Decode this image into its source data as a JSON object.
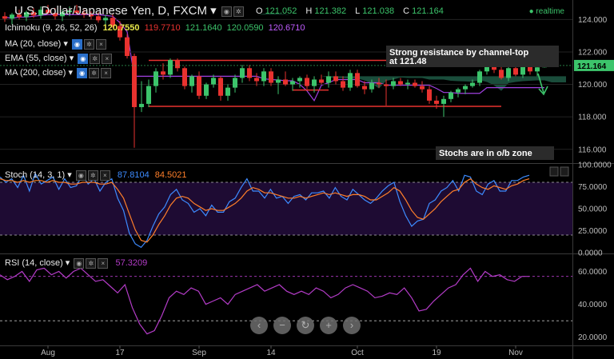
{
  "header": {
    "title": "U.S. Dollar/Japanese Yen, D, FXCM",
    "open_label": "O",
    "open": "121.052",
    "high_label": "H",
    "high": "121.382",
    "low_label": "L",
    "low": "121.038",
    "close_label": "C",
    "close": "121.164",
    "realtime": "realtime"
  },
  "indicators": {
    "ichimoku": "Ichimoku (9, 26, 52, 26)",
    "ichimoku_values": [
      "120.7550",
      "119.7710",
      "121.1640",
      "120.0590",
      "120.6710"
    ],
    "ma20": "MA (20, close)",
    "ema55": "EMA (55, close)",
    "ma200": "MA (200, close)",
    "stoch": "Stoch (14, 3, 1)",
    "stoch_k": "87.8104",
    "stoch_d": "84.5021",
    "rsi": "RSI (14, close)",
    "rsi_value": "57.3209"
  },
  "annotations": {
    "resistance_line1": "Strong resistance by channel-top",
    "resistance_line2": "at 121.48",
    "stochs": "Stochs are in o/b zone"
  },
  "price_tag": "121.164",
  "colors": {
    "up": "#3cc46b",
    "down": "#e8322f",
    "stoch_k": "#3d8bff",
    "stoch_d": "#ff7f2a",
    "rsi": "#b43cc8",
    "ichimoku_kijun": "#a040e0",
    "annotation_line": "#e8322f"
  },
  "chart_data": [
    {
      "type": "candlestick",
      "title": "U.S. Dollar/Japanese Yen, D, FXCM",
      "x_tick_labels": [
        "Aug",
        "17",
        "Sep",
        "14",
        "Oct",
        "19",
        "Nov"
      ],
      "y_tick_labels": [
        "124.000",
        "122.000",
        "120.000",
        "118.000",
        "116.000"
      ],
      "ylim": [
        115.2,
        125.2
      ],
      "candles": [
        {
          "o": 124.2,
          "h": 124.45,
          "l": 123.85,
          "c": 124.05
        },
        {
          "o": 124.05,
          "h": 124.4,
          "l": 123.7,
          "c": 124.3
        },
        {
          "o": 124.3,
          "h": 124.6,
          "l": 124.0,
          "c": 124.15
        },
        {
          "o": 124.15,
          "h": 124.55,
          "l": 123.9,
          "c": 124.45
        },
        {
          "o": 124.45,
          "h": 124.7,
          "l": 124.1,
          "c": 124.25
        },
        {
          "o": 124.25,
          "h": 124.8,
          "l": 124.05,
          "c": 124.6
        },
        {
          "o": 124.6,
          "h": 124.9,
          "l": 124.3,
          "c": 124.4
        },
        {
          "o": 124.4,
          "h": 124.7,
          "l": 124.0,
          "c": 124.2
        },
        {
          "o": 124.2,
          "h": 124.6,
          "l": 123.9,
          "c": 124.45
        },
        {
          "o": 124.45,
          "h": 124.8,
          "l": 124.2,
          "c": 124.55
        },
        {
          "o": 124.55,
          "h": 124.9,
          "l": 124.3,
          "c": 124.4
        },
        {
          "o": 124.4,
          "h": 124.6,
          "l": 124.1,
          "c": 124.3
        },
        {
          "o": 124.3,
          "h": 124.5,
          "l": 124.0,
          "c": 124.2
        },
        {
          "o": 124.2,
          "h": 124.45,
          "l": 123.8,
          "c": 123.95
        },
        {
          "o": 123.95,
          "h": 124.3,
          "l": 123.6,
          "c": 124.1
        },
        {
          "o": 124.1,
          "h": 124.35,
          "l": 123.5,
          "c": 123.6
        },
        {
          "o": 123.6,
          "h": 123.9,
          "l": 122.7,
          "c": 122.9
        },
        {
          "o": 122.9,
          "h": 123.1,
          "l": 121.6,
          "c": 121.75
        },
        {
          "o": 121.75,
          "h": 121.9,
          "l": 116.1,
          "c": 118.6
        },
        {
          "o": 118.6,
          "h": 120.2,
          "l": 118.3,
          "c": 118.8
        },
        {
          "o": 118.8,
          "h": 120.3,
          "l": 118.6,
          "c": 119.9
        },
        {
          "o": 119.9,
          "h": 121.0,
          "l": 119.5,
          "c": 120.8
        },
        {
          "o": 120.8,
          "h": 121.3,
          "l": 120.3,
          "c": 120.6
        },
        {
          "o": 120.6,
          "h": 121.6,
          "l": 120.4,
          "c": 121.5
        },
        {
          "o": 121.5,
          "h": 121.6,
          "l": 120.8,
          "c": 121.0
        },
        {
          "o": 121.0,
          "h": 121.1,
          "l": 119.7,
          "c": 119.9
        },
        {
          "o": 119.9,
          "h": 120.6,
          "l": 119.5,
          "c": 120.5
        },
        {
          "o": 120.5,
          "h": 120.8,
          "l": 119.1,
          "c": 119.3
        },
        {
          "o": 119.3,
          "h": 120.1,
          "l": 119.1,
          "c": 120.0
        },
        {
          "o": 120.0,
          "h": 120.6,
          "l": 119.8,
          "c": 120.4
        },
        {
          "o": 120.4,
          "h": 120.5,
          "l": 119.0,
          "c": 119.3
        },
        {
          "o": 119.3,
          "h": 120.0,
          "l": 119.0,
          "c": 119.8
        },
        {
          "o": 119.8,
          "h": 120.6,
          "l": 119.5,
          "c": 120.4
        },
        {
          "o": 120.4,
          "h": 121.2,
          "l": 120.1,
          "c": 121.0
        },
        {
          "o": 121.0,
          "h": 121.2,
          "l": 120.2,
          "c": 120.4
        },
        {
          "o": 120.4,
          "h": 120.7,
          "l": 119.9,
          "c": 120.2
        },
        {
          "o": 120.2,
          "h": 121.0,
          "l": 119.9,
          "c": 120.8
        },
        {
          "o": 120.8,
          "h": 121.0,
          "l": 119.9,
          "c": 120.1
        },
        {
          "o": 120.1,
          "h": 120.5,
          "l": 119.4,
          "c": 120.3
        },
        {
          "o": 120.3,
          "h": 120.8,
          "l": 119.9,
          "c": 120.0
        },
        {
          "o": 120.0,
          "h": 120.4,
          "l": 119.6,
          "c": 120.2
        },
        {
          "o": 120.2,
          "h": 120.5,
          "l": 119.8,
          "c": 120.4
        },
        {
          "o": 120.4,
          "h": 120.6,
          "l": 119.7,
          "c": 119.9
        },
        {
          "o": 119.9,
          "h": 120.5,
          "l": 119.5,
          "c": 120.3
        },
        {
          "o": 120.3,
          "h": 120.6,
          "l": 120.0,
          "c": 120.1
        },
        {
          "o": 120.1,
          "h": 120.8,
          "l": 119.8,
          "c": 120.5
        },
        {
          "o": 120.5,
          "h": 120.8,
          "l": 120.0,
          "c": 120.2
        },
        {
          "o": 120.2,
          "h": 120.5,
          "l": 119.6,
          "c": 119.8
        },
        {
          "o": 119.8,
          "h": 120.9,
          "l": 119.6,
          "c": 120.7
        },
        {
          "o": 120.7,
          "h": 120.9,
          "l": 119.8,
          "c": 119.9
        },
        {
          "o": 119.9,
          "h": 120.2,
          "l": 119.4,
          "c": 119.7
        },
        {
          "o": 119.7,
          "h": 120.3,
          "l": 119.5,
          "c": 120.1
        },
        {
          "o": 120.1,
          "h": 120.4,
          "l": 119.8,
          "c": 120.0
        },
        {
          "o": 120.0,
          "h": 120.3,
          "l": 118.7,
          "c": 119.9
        },
        {
          "o": 119.9,
          "h": 120.4,
          "l": 119.7,
          "c": 120.2
        },
        {
          "o": 120.2,
          "h": 120.4,
          "l": 119.9,
          "c": 120.0
        },
        {
          "o": 120.0,
          "h": 120.3,
          "l": 119.7,
          "c": 120.1
        },
        {
          "o": 120.1,
          "h": 120.3,
          "l": 119.8,
          "c": 119.9
        },
        {
          "o": 119.9,
          "h": 120.2,
          "l": 119.5,
          "c": 119.7
        },
        {
          "o": 119.7,
          "h": 119.9,
          "l": 118.8,
          "c": 119.0
        },
        {
          "o": 119.0,
          "h": 119.3,
          "l": 118.5,
          "c": 118.8
        },
        {
          "o": 118.8,
          "h": 119.3,
          "l": 118.0,
          "c": 119.1
        },
        {
          "o": 119.1,
          "h": 119.6,
          "l": 118.9,
          "c": 119.5
        },
        {
          "o": 119.5,
          "h": 119.8,
          "l": 119.2,
          "c": 119.7
        },
        {
          "o": 119.7,
          "h": 120.0,
          "l": 119.4,
          "c": 119.9
        },
        {
          "o": 119.9,
          "h": 120.3,
          "l": 119.8,
          "c": 120.1
        },
        {
          "o": 120.1,
          "h": 120.9,
          "l": 119.9,
          "c": 120.8
        },
        {
          "o": 120.8,
          "h": 121.6,
          "l": 120.6,
          "c": 121.4
        },
        {
          "o": 121.4,
          "h": 121.5,
          "l": 120.7,
          "c": 120.9
        },
        {
          "o": 120.9,
          "h": 121.4,
          "l": 120.3,
          "c": 120.4
        },
        {
          "o": 120.4,
          "h": 121.2,
          "l": 120.2,
          "c": 121.0
        },
        {
          "o": 121.0,
          "h": 121.3,
          "l": 120.5,
          "c": 120.6
        },
        {
          "o": 120.6,
          "h": 121.2,
          "l": 120.4,
          "c": 121.1
        },
        {
          "o": 121.1,
          "h": 121.3,
          "l": 120.6,
          "c": 120.8
        },
        {
          "o": 120.8,
          "h": 121.2,
          "l": 120.5,
          "c": 121.05
        },
        {
          "o": 121.05,
          "h": 121.38,
          "l": 121.04,
          "c": 121.16
        }
      ],
      "resistance_line": 121.48,
      "support_line": 118.65,
      "mid_line": 119.65
    },
    {
      "type": "line",
      "title": "Stoch (14, 3, 1)",
      "ylim": [
        0,
        100
      ],
      "y_tick_labels": [
        "100.0000",
        "75.0000",
        "50.0000",
        "25.0000",
        "0.0000"
      ],
      "overbought": 80,
      "oversold": 20,
      "series": [
        {
          "name": "87.8104",
          "values": [
            86,
            80,
            84,
            74,
            88,
            70,
            90,
            78,
            82,
            86,
            72,
            84,
            74,
            76,
            88,
            78,
            84,
            70,
            80,
            84,
            62,
            48,
            22,
            10,
            6,
            14,
            30,
            44,
            52,
            66,
            72,
            60,
            56,
            46,
            50,
            42,
            54,
            46,
            46,
            58,
            62,
            74,
            84,
            70,
            70,
            62,
            72,
            62,
            64,
            56,
            64,
            66,
            60,
            68,
            68,
            70,
            62,
            74,
            64,
            60,
            72,
            66,
            60,
            56,
            62,
            70,
            76,
            80,
            58,
            42,
            30,
            36,
            38,
            56,
            60,
            70,
            74,
            82,
            70,
            88,
            86,
            70,
            66,
            78,
            82,
            70,
            70,
            82,
            82,
            86,
            88
          ]
        },
        {
          "name": "84.5021",
          "values": [
            84,
            82,
            82,
            80,
            82,
            80,
            82,
            82,
            80,
            82,
            80,
            80,
            78,
            78,
            80,
            80,
            80,
            78,
            78,
            80,
            72,
            62,
            44,
            26,
            14,
            12,
            20,
            32,
            42,
            54,
            62,
            64,
            62,
            56,
            52,
            48,
            50,
            48,
            48,
            52,
            56,
            62,
            70,
            74,
            72,
            68,
            68,
            66,
            64,
            62,
            62,
            64,
            62,
            64,
            66,
            68,
            66,
            68,
            66,
            64,
            66,
            66,
            64,
            60,
            60,
            64,
            68,
            74,
            70,
            60,
            48,
            40,
            38,
            44,
            50,
            58,
            64,
            70,
            72,
            80,
            84,
            78,
            74,
            72,
            76,
            74,
            72,
            76,
            78,
            82,
            84
          ]
        }
      ]
    },
    {
      "type": "line",
      "title": "RSI (14, close)",
      "ylim": [
        15,
        70
      ],
      "y_tick_labels": [
        "60.0000",
        "40.0000",
        "20.0000"
      ],
      "overbought": 57,
      "oversold": 30,
      "series": [
        {
          "name": "57.3209",
          "values": [
            58,
            55,
            57,
            60,
            54,
            61,
            62,
            58,
            60,
            56,
            60,
            62,
            58,
            54,
            55,
            51,
            47,
            52,
            38,
            28,
            22,
            24,
            33,
            44,
            48,
            46,
            50,
            48,
            40,
            42,
            44,
            40,
            46,
            48,
            50,
            52,
            48,
            50,
            52,
            48,
            46,
            48,
            46,
            50,
            48,
            44,
            46,
            50,
            52,
            50,
            48,
            44,
            45,
            47,
            46,
            50,
            44,
            36,
            37,
            42,
            46,
            50,
            52,
            58,
            62,
            54,
            60,
            57,
            58,
            55,
            54,
            57,
            57
          ]
        }
      ]
    }
  ]
}
